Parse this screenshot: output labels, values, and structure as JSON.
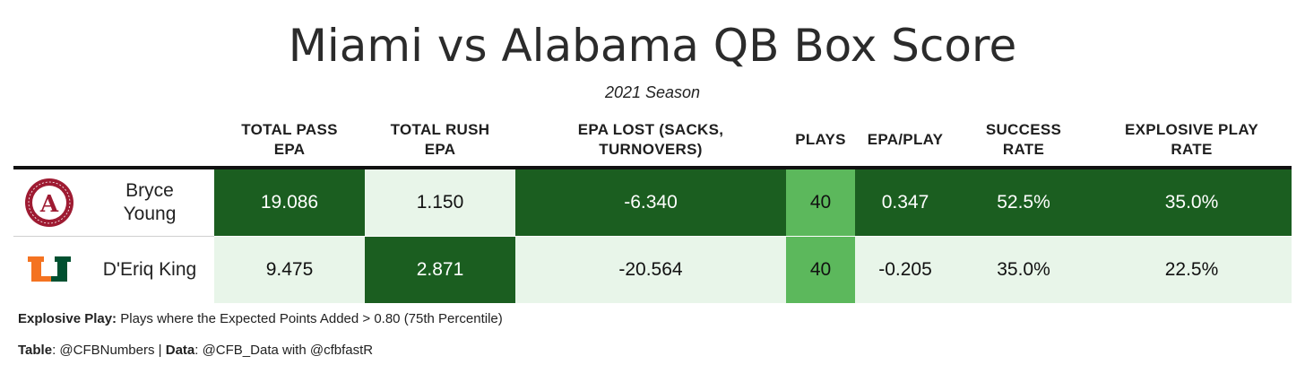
{
  "title": "Miami vs Alabama QB Box Score",
  "subtitle": "2021 Season",
  "columns": [
    {
      "label": "TOTAL PASS EPA",
      "line1": "TOTAL PASS",
      "line2": "EPA"
    },
    {
      "label": "TOTAL RUSH EPA",
      "line1": "TOTAL RUSH",
      "line2": "EPA"
    },
    {
      "label": "EPA LOST (SACKS, TURNOVERS)",
      "line1": "EPA LOST (SACKS,",
      "line2": "TURNOVERS)"
    },
    {
      "label": "PLAYS",
      "line1": "PLAYS",
      "line2": ""
    },
    {
      "label": "EPA/PLAY",
      "line1": "EPA/PLAY",
      "line2": ""
    },
    {
      "label": "SUCCESS RATE",
      "line1": "SUCCESS",
      "line2": "RATE"
    },
    {
      "label": "EXPLOSIVE PLAY RATE",
      "line1": "EXPLOSIVE PLAY",
      "line2": "RATE"
    }
  ],
  "rows": [
    {
      "team_logo": "alabama-logo",
      "name_line1": "Bryce",
      "name_line2": "Young",
      "total_pass_epa": "19.086",
      "total_rush_epa": "1.150",
      "epa_lost": "-6.340",
      "plays": "40",
      "epa_per_play": "0.347",
      "success_rate": "52.5%",
      "explosive_play_rate": "35.0%"
    },
    {
      "team_logo": "miami-logo",
      "name_line1": "D'Eriq King",
      "name_line2": "",
      "total_pass_epa": "9.475",
      "total_rush_epa": "2.871",
      "epa_lost": "-20.564",
      "plays": "40",
      "epa_per_play": "-0.205",
      "success_rate": "35.0%",
      "explosive_play_rate": "22.5%"
    }
  ],
  "footnotes": {
    "explosive_label": "Explosive Play:",
    "explosive_text": " Plays where the Expected Points Added > 0.80 (75th Percentile)",
    "table_label": "Table",
    "table_text": ": @CFBNumbers | ",
    "data_label": "Data",
    "data_text": ": @CFB_Data with @cfbfastR"
  },
  "colors": {
    "dark_green": "#1b5e20",
    "mid_green": "#5cb85c",
    "light_green": "#e8f5e9",
    "alabama_crimson": "#9e1b32",
    "miami_orange": "#f47321",
    "miami_green": "#005030"
  }
}
